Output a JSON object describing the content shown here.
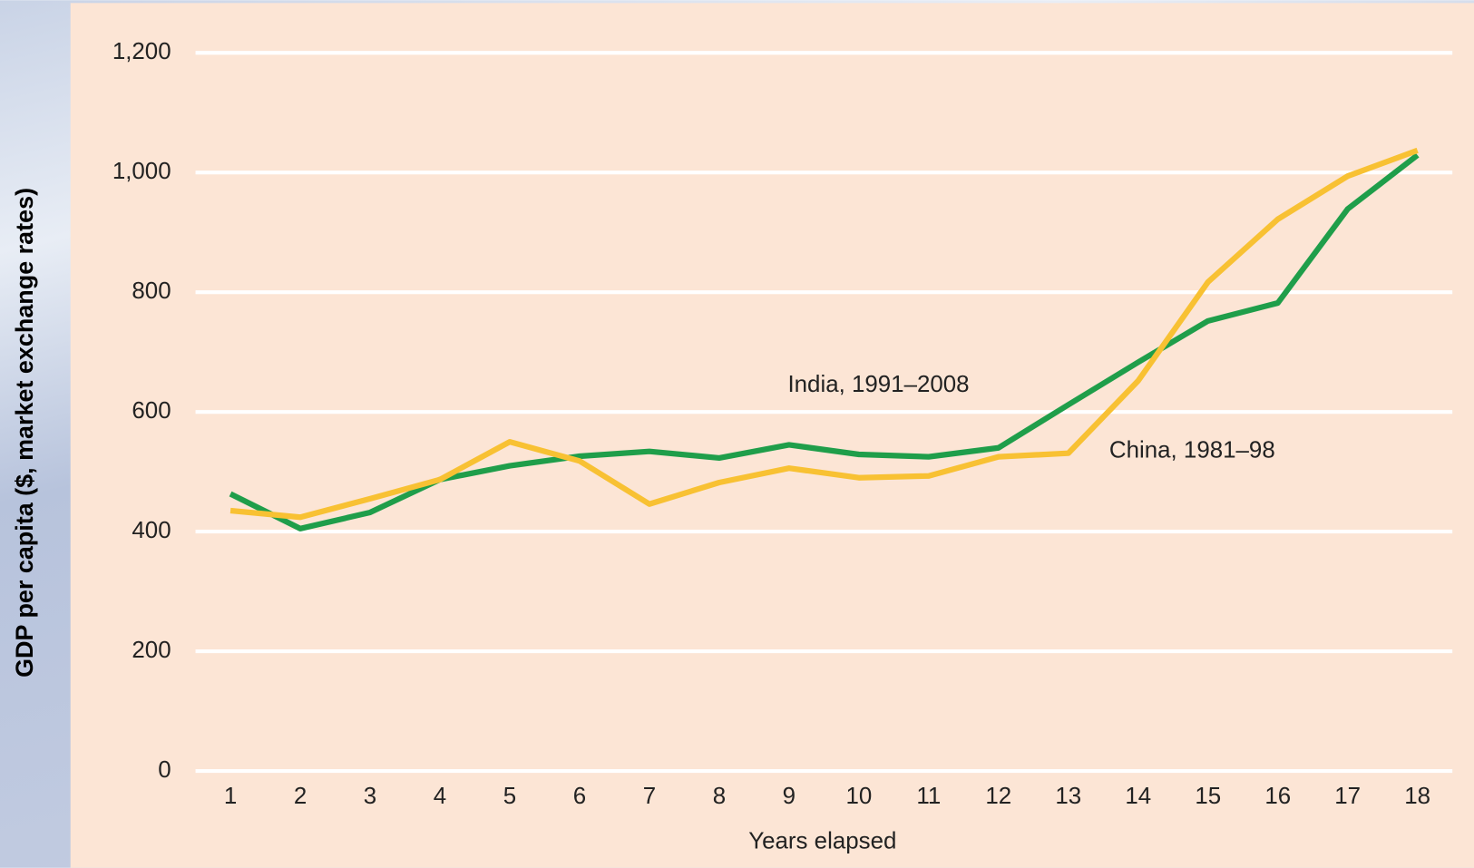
{
  "chart_data": {
    "type": "line",
    "y_label": "GDP per capita ($, market exchange rates)",
    "x_label": "Years elapsed",
    "x": [
      1,
      2,
      3,
      4,
      5,
      6,
      7,
      8,
      9,
      10,
      11,
      12,
      13,
      14,
      15,
      16,
      17,
      18
    ],
    "xlim": [
      0.5,
      18.5
    ],
    "xticks": [
      1,
      2,
      3,
      4,
      5,
      6,
      7,
      8,
      9,
      10,
      11,
      12,
      13,
      14,
      15,
      16,
      17,
      18
    ],
    "ylim": [
      0,
      1200
    ],
    "yticks": [
      0,
      200,
      400,
      600,
      800,
      {
        "value": 1000,
        "label": "1,000"
      },
      {
        "value": 1200,
        "label": "1,200"
      }
    ],
    "grid": true,
    "series": [
      {
        "name": "India, 1991–2008",
        "color": "#1f9e4a",
        "values": [
          463,
          405,
          432,
          487,
          510,
          526,
          534,
          523,
          545,
          529,
          525,
          540,
          612,
          683,
          752,
          782,
          939,
          1029
        ]
      },
      {
        "name": "China, 1981–98",
        "color": "#f8c133",
        "values": [
          435,
          424,
          455,
          487,
          550,
          518,
          446,
          482,
          506,
          490,
          493,
          525,
          531,
          652,
          817,
          922,
          994,
          1037
        ]
      }
    ]
  }
}
